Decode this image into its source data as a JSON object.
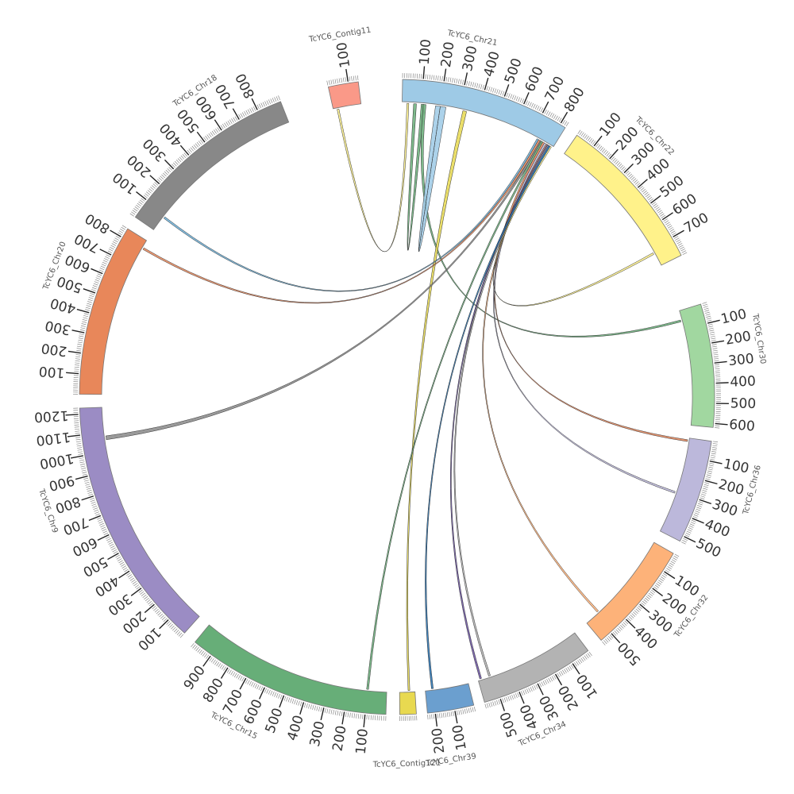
{
  "chart_data": {
    "type": "chord",
    "title": "",
    "chromosomes": [
      {
        "name": "TcYC6_Chr21",
        "length": 830,
        "color": "#9ECAE6",
        "label_edge": "start",
        "ticks": [
          100,
          200,
          300,
          400,
          500,
          600,
          700,
          800
        ]
      },
      {
        "name": "TcYC6_Chr22",
        "length": 800,
        "color": "#FFF28A",
        "label_edge": "start",
        "ticks": [
          100,
          200,
          300,
          400,
          500,
          600,
          700
        ]
      },
      {
        "name": "TcYC6_Chr30",
        "length": 620,
        "color": "#A1D7A0",
        "label_edge": "start",
        "ticks": [
          100,
          200,
          300,
          400,
          500,
          600
        ]
      },
      {
        "name": "TcYC6_Chr36",
        "length": 530,
        "color": "#BCB8DB",
        "label_edge": "start",
        "ticks": [
          100,
          200,
          300,
          400,
          500
        ]
      },
      {
        "name": "TcYC6_Chr32",
        "length": 560,
        "color": "#FDB279",
        "label_edge": "start",
        "ticks": [
          100,
          200,
          300,
          400,
          500
        ]
      },
      {
        "name": "TcYC6_Chr34",
        "length": 580,
        "color": "#B3B3B3",
        "label_edge": "end",
        "ticks": [
          100,
          200,
          300,
          400,
          500
        ]
      },
      {
        "name": "TcYC6_Chr39",
        "length": 240,
        "color": "#6B9FCF",
        "label_edge": "end",
        "ticks": [
          100,
          200
        ]
      },
      {
        "name": "TcYC6_Contig121",
        "length": 90,
        "color": "#E8D950",
        "label_edge": "end",
        "ticks": []
      },
      {
        "name": "TcYC6_Chr15",
        "length": 1000,
        "color": "#67AE78",
        "label_edge": "end",
        "ticks": [
          100,
          200,
          300,
          400,
          500,
          600,
          700,
          800,
          900
        ]
      },
      {
        "name": "TcYC6_Chr9",
        "length": 1230,
        "color": "#9B8CC4",
        "label_edge": "end",
        "ticks": [
          100,
          200,
          300,
          400,
          500,
          600,
          700,
          800,
          900,
          1000,
          1100,
          1200
        ]
      },
      {
        "name": "TcYC6_Chr20",
        "length": 850,
        "color": "#E8875A",
        "label_edge": "end",
        "ticks": [
          100,
          200,
          300,
          400,
          500,
          600,
          700,
          800
        ]
      },
      {
        "name": "TcYC6_Chr18",
        "length": 920,
        "color": "#888888",
        "label_edge": "end",
        "ticks": [
          100,
          200,
          300,
          400,
          500,
          600,
          700,
          800
        ]
      },
      {
        "name": "TcYC6_Contig11",
        "length": 150,
        "color": "#FA9988",
        "label_edge": "end",
        "ticks": [
          100
        ]
      }
    ],
    "links": [
      {
        "source": {
          "chr": "TcYC6_Contig11",
          "start": 20,
          "end": 30
        },
        "target": {
          "chr": "TcYC6_Chr21",
          "start": 25,
          "end": 35
        },
        "color": "#FFF28A"
      },
      {
        "source": {
          "chr": "TcYC6_Chr21",
          "start": 60,
          "end": 75
        },
        "target": {
          "chr": "TcYC6_Chr21",
          "start": 100,
          "end": 115
        },
        "color": "#67AE78"
      },
      {
        "source": {
          "chr": "TcYC6_Chr21",
          "start": 110,
          "end": 125
        },
        "target": {
          "chr": "TcYC6_Chr30",
          "start": 50,
          "end": 60
        },
        "color": "#67AE78"
      },
      {
        "source": {
          "chr": "TcYC6_Chr21",
          "start": 200,
          "end": 230
        },
        "target": {
          "chr": "TcYC6_Chr21",
          "start": 175,
          "end": 200
        },
        "color": "#9ECAE6"
      },
      {
        "source": {
          "chr": "TcYC6_Chr21",
          "start": 320,
          "end": 340
        },
        "target": {
          "chr": "TcYC6_Contig121",
          "start": 30,
          "end": 40
        },
        "color": "#E8D950"
      },
      {
        "source": {
          "chr": "TcYC6_Chr18",
          "start": 80,
          "end": 90
        },
        "target": {
          "chr": "TcYC6_Chr21",
          "start": 735,
          "end": 745
        },
        "color": "#6BAED6"
      },
      {
        "source": {
          "chr": "TcYC6_Chr20",
          "start": 800,
          "end": 810
        },
        "target": {
          "chr": "TcYC6_Chr21",
          "start": 745,
          "end": 755
        },
        "color": "#E8875A"
      },
      {
        "source": {
          "chr": "TcYC6_Chr9",
          "start": 1060,
          "end": 1080
        },
        "target": {
          "chr": "TcYC6_Chr21",
          "start": 755,
          "end": 765
        },
        "color": "#888888"
      },
      {
        "source": {
          "chr": "TcYC6_Chr21",
          "start": 770,
          "end": 780
        },
        "target": {
          "chr": "TcYC6_Chr36",
          "start": 10,
          "end": 20
        },
        "color": "#E8875A"
      },
      {
        "source": {
          "chr": "TcYC6_Chr21",
          "start": 780,
          "end": 790
        },
        "target": {
          "chr": "TcYC6_Chr36",
          "start": 300,
          "end": 310
        },
        "color": "#BCB8DB"
      },
      {
        "source": {
          "chr": "TcYC6_Chr21",
          "start": 790,
          "end": 800
        },
        "target": {
          "chr": "TcYC6_Chr32",
          "start": 470,
          "end": 480
        },
        "color": "#FDB279"
      },
      {
        "source": {
          "chr": "TcYC6_Chr21",
          "start": 795,
          "end": 805
        },
        "target": {
          "chr": "TcYC6_Chr34",
          "start": 560,
          "end": 570
        },
        "color": "#6A51A3"
      },
      {
        "source": {
          "chr": "TcYC6_Chr21",
          "start": 800,
          "end": 810
        },
        "target": {
          "chr": "TcYC6_Chr34",
          "start": 510,
          "end": 520
        },
        "color": "#B3B3B3"
      },
      {
        "source": {
          "chr": "TcYC6_Chr21",
          "start": 805,
          "end": 815
        },
        "target": {
          "chr": "TcYC6_Chr39",
          "start": 195,
          "end": 205
        },
        "color": "#2171B5"
      },
      {
        "source": {
          "chr": "TcYC6_Chr21",
          "start": 760,
          "end": 770
        },
        "target": {
          "chr": "TcYC6_Chr15",
          "start": 95,
          "end": 105
        },
        "color": "#67AE78"
      },
      {
        "source": {
          "chr": "TcYC6_Chr22",
          "start": 720,
          "end": 730
        },
        "target": {
          "chr": "TcYC6_Chr21",
          "start": 815,
          "end": 822
        },
        "color": "#FFF28A"
      }
    ]
  }
}
